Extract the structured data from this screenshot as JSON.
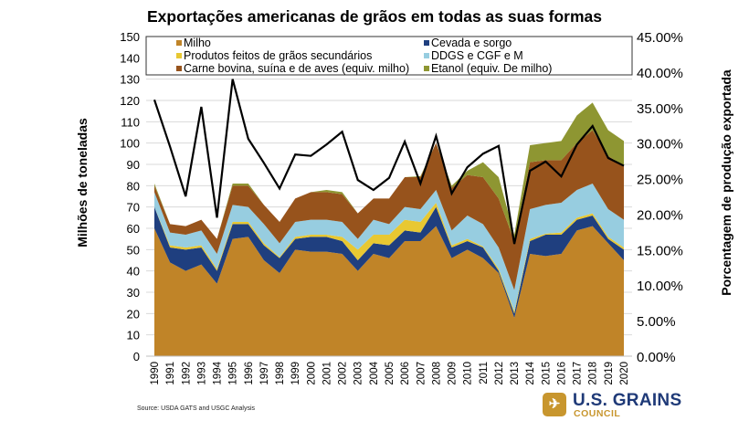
{
  "chart_data": {
    "type": "area",
    "stacked": true,
    "title": "Exportações americanas de grãos em todas as suas formas",
    "ylabel": "Milhões de toneladas",
    "y2label": "Porcentagem de produção exportada",
    "ylim": [
      0,
      150
    ],
    "y2lim": [
      0,
      45
    ],
    "yticks": [
      "0",
      "10",
      "20",
      "30",
      "40",
      "50",
      "60",
      "70",
      "80",
      "90",
      "100",
      "110",
      "120",
      "130",
      "140",
      "150"
    ],
    "y2ticks": [
      "0.00%",
      "5.00%",
      "10.00%",
      "15.00%",
      "20.00%",
      "25.00%",
      "30.00%",
      "35.00%",
      "40.00%",
      "45.00%"
    ],
    "grid": true,
    "legend": "top",
    "categories": [
      "1990",
      "1991",
      "1992",
      "1993",
      "1994",
      "1995",
      "1996",
      "1997",
      "1998",
      "1999",
      "2000",
      "2001",
      "2002",
      "2003",
      "2004",
      "2005",
      "2006",
      "2007",
      "2008",
      "2009",
      "2010",
      "2011",
      "2012",
      "2013",
      "2014",
      "2015",
      "2016",
      "2017",
      "2018",
      "2019",
      "2020"
    ],
    "series": [
      {
        "name": "Milho",
        "color": "#c08428",
        "values": [
          60,
          44,
          40,
          43,
          34,
          55,
          56,
          45,
          39,
          50,
          49,
          49,
          48,
          40,
          48,
          46,
          54,
          54,
          61,
          46,
          50,
          46,
          39,
          18,
          48,
          47,
          48,
          59,
          61,
          53,
          45
        ]
      },
      {
        "name": "Cevada e sorgo",
        "color": "#1f3f7f",
        "values": [
          10,
          7,
          10,
          8,
          6,
          7,
          6,
          7,
          7,
          5,
          7,
          7,
          6,
          5,
          5,
          6,
          5,
          4,
          9,
          5,
          4,
          5,
          1,
          2,
          6,
          10,
          9,
          5,
          5,
          2,
          5
        ]
      },
      {
        "name": "Produtos feitos de grãos secundários",
        "color": "#e8c832",
        "values": [
          0,
          1,
          1,
          1,
          1,
          1,
          1,
          1,
          0.5,
          1,
          1,
          1,
          2,
          5,
          4,
          5,
          5,
          5,
          2,
          1,
          1,
          0.5,
          1,
          1,
          1,
          0.5,
          1,
          1,
          1,
          1,
          1
        ]
      },
      {
        "name": "DDGS e CGF e M",
        "color": "#97cde0",
        "values": [
          7,
          6,
          6,
          7,
          7,
          8,
          7,
          9,
          6.5,
          7,
          7,
          7,
          7,
          5,
          7,
          5,
          6,
          6,
          6,
          7,
          11,
          10.5,
          10,
          10,
          14,
          13.5,
          14,
          13,
          14,
          13,
          13
        ]
      },
      {
        "name": "Carne bovina, suína e de aves (equiv. milho)",
        "color": "#97531c",
        "values": [
          3,
          4,
          4,
          5,
          7,
          9,
          10,
          9,
          10,
          11,
          13,
          13,
          13,
          12,
          10,
          12,
          14,
          15,
          22,
          20,
          19,
          22,
          23,
          23,
          22,
          21,
          20,
          22,
          25,
          25,
          25
        ]
      },
      {
        "name": "Etanol (equiv. De milho)",
        "color": "#8e9632",
        "values": [
          1,
          0,
          0,
          0,
          0,
          1,
          1,
          0,
          0,
          0,
          0,
          1,
          1,
          0,
          0,
          0,
          0,
          0.5,
          0,
          1,
          2,
          7,
          10,
          3,
          8,
          8,
          9,
          13,
          13,
          12,
          12
        ]
      }
    ],
    "line_series": {
      "axis": "right",
      "color": "#000000",
      "unit": "%",
      "values": [
        36.1,
        29.5,
        22.5,
        35.1,
        19.5,
        39.0,
        30.6,
        27.2,
        23.6,
        28.4,
        28.2,
        29.8,
        31.6,
        24.8,
        23.4,
        25.1,
        30.2,
        24.3,
        31.0,
        22.9,
        26.6,
        28.5,
        29.6,
        15.8,
        26.1,
        27.4,
        25.3,
        29.8,
        32.4,
        27.9,
        26.8
      ]
    }
  },
  "footer": {
    "source": "Source: USDA GATS and USGC Analysis",
    "logo_name": "U.S. GRAINS",
    "logo_sub": "COUNCIL"
  }
}
